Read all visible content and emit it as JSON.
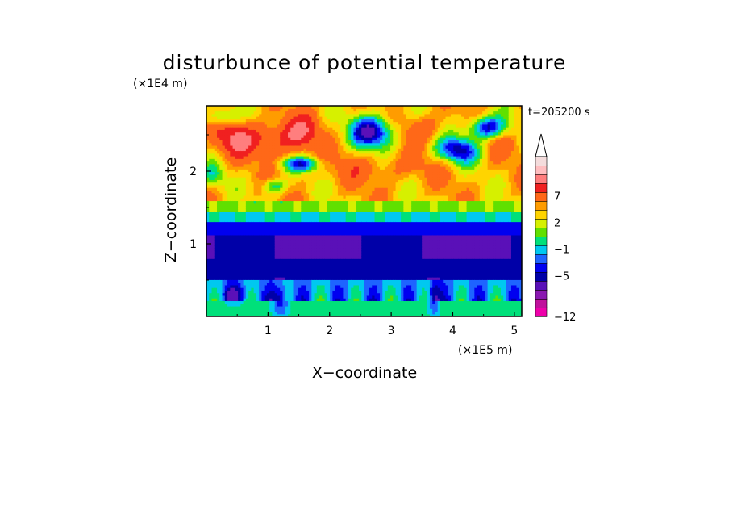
{
  "chart_data": {
    "type": "heatmap",
    "title": "disturbunce of potential temperature",
    "xlabel": "X−coordinate",
    "ylabel": "Z−coordinate",
    "x_unit": "(×1E5 m)",
    "y_unit": "(×1E4 m)",
    "time_label": "t=205200 s",
    "xlim": [
      0,
      5.12
    ],
    "ylim": [
      0,
      2.9
    ],
    "x_ticks": [
      1,
      2,
      3,
      4,
      5
    ],
    "y_ticks": [
      1,
      2
    ],
    "x_tick_labels": [
      "1",
      "2",
      "3",
      "4",
      "5"
    ],
    "y_tick_labels": [
      "1",
      "2"
    ],
    "colorbar": {
      "labels": [
        "7",
        "2",
        "−1",
        "−5",
        "−12"
      ],
      "levels": [
        -12,
        -10,
        -8,
        -6,
        -5,
        -4,
        -3,
        -2,
        -1,
        0,
        1,
        2,
        3,
        5,
        7,
        9,
        11
      ],
      "colors": [
        "#ee00aa",
        "#c0109c",
        "#8a18b0",
        "#5a10b8",
        "#0000a8",
        "#0000f0",
        "#1e64ff",
        "#00c8f0",
        "#00e07a",
        "#60e000",
        "#d6f000",
        "#ffd400",
        "#ff9c00",
        "#ff6818",
        "#f02020",
        "#ff7e7e",
        "#ffbec0",
        "#f4dcdc"
      ]
    },
    "description_bands": [
      {
        "z": [
          0.0,
          0.2
        ],
        "value": -1.5
      },
      {
        "z": [
          0.2,
          0.5
        ],
        "value": -3
      },
      {
        "z": [
          0.5,
          1.15
        ],
        "value": -6
      },
      {
        "z": [
          1.15,
          1.35
        ],
        "value": -4
      },
      {
        "z": [
          1.35,
          1.55
        ],
        "value": -1
      },
      {
        "z": [
          1.55,
          2.1
        ],
        "value": 3
      },
      {
        "z": [
          2.1,
          2.9
        ],
        "value": 4
      }
    ]
  }
}
